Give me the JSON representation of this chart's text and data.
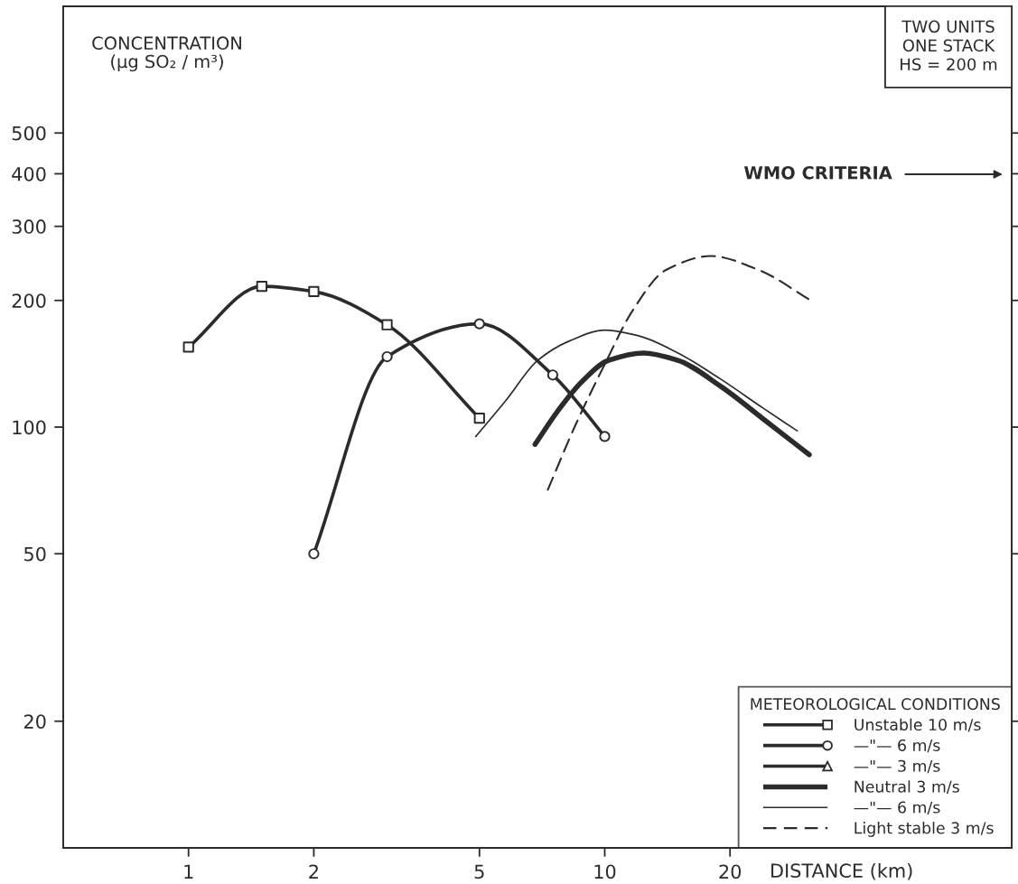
{
  "chart_data": {
    "type": "line",
    "log": "xy",
    "xlim": [
      0.5,
      95
    ],
    "ylim": [
      10,
      1000
    ],
    "xticks": [
      1,
      2,
      5,
      10,
      20
    ],
    "yticks": [
      20,
      50,
      100,
      200,
      300,
      400,
      500
    ],
    "xlabel": "DISTANCE (km)",
    "ylabel": "CONCENTRATION\n(µg SO₂ / m³)",
    "legend_title": "METEOROLOGICAL CONDITIONS",
    "legend": "bottom right",
    "grid": false,
    "annotations": [
      "TWO UNITS\nONE STACK\nHS = 200 m",
      "WMO CRITERIA"
    ],
    "series": [
      {
        "name": "Unstable 10 m/s",
        "color": "#2b2b2b",
        "marker": "square",
        "line_style": "solid",
        "x": [
          1,
          1.5,
          2,
          3,
          5
        ],
        "values": [
          155,
          216,
          210,
          175,
          105
        ]
      },
      {
        "name": "—\"— 6 m/s",
        "color": "#2b2b2b",
        "marker": "circle",
        "line_style": "solid",
        "x": [
          2,
          3,
          5,
          7.5,
          10
        ],
        "values": [
          50,
          147,
          176,
          133,
          95
        ]
      },
      {
        "name": "—\"— 3 m/s",
        "color": "#2b2b2b",
        "marker": "triangle",
        "line_style": "solid"
      },
      {
        "name": "Neutral 3 m/s",
        "color": "#2b2b2b",
        "marker": "none",
        "line_style": "solid",
        "x": [
          6.8,
          7.7,
          8.8,
          10.2,
          12.4,
          15,
          19,
          24.5,
          31
        ],
        "values": [
          91,
          109,
          128,
          144,
          150,
          144,
          125,
          103,
          86
        ]
      },
      {
        "name": "—\"— 6 m/s",
        "color": "#2b2b2b",
        "marker": "none",
        "line_style": "solid",
        "x": [
          4.9,
          5.8,
          6.9,
          8.2,
          10,
          12,
          15,
          19,
          24,
          29
        ],
        "values": [
          95,
          116,
          144,
          160,
          170,
          165,
          150,
          130,
          111,
          98
        ]
      },
      {
        "name": "Light stable 3 m/s",
        "color": "#2b2b2b",
        "marker": "none",
        "line_style": "dashed",
        "x": [
          7.3,
          8.5,
          10,
          11.7,
          14,
          18,
          23.5,
          31.5
        ],
        "values": [
          71,
          101,
          141,
          190,
          236,
          255,
          236,
          199
        ]
      }
    ]
  }
}
